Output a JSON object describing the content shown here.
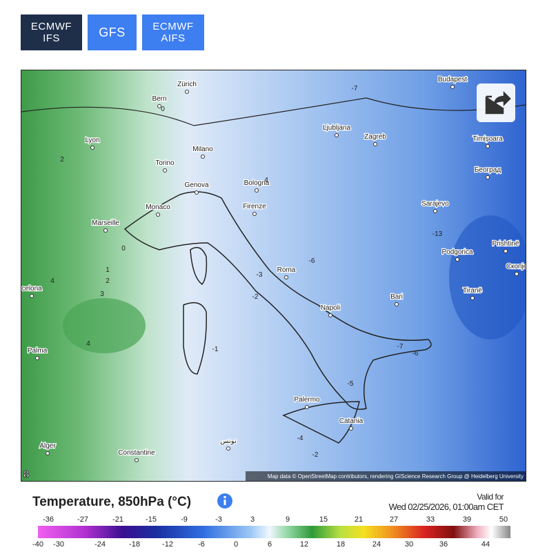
{
  "tabs": [
    {
      "label": "ECMWF IFS"
    },
    {
      "label": "GFS"
    },
    {
      "label": "ECMWF AIFS"
    }
  ],
  "map": {
    "cities": [
      "Budapest",
      "Zürich",
      "Bern",
      "Lyon",
      "Ljubljana",
      "Zagreb",
      "Timișoara",
      "Milano",
      "Torino",
      "Београд",
      "Genova",
      "Bologna",
      "Monaco",
      "Firenze",
      "Sarajevo",
      "Marseille",
      "Podgorica",
      "Prishtinë",
      "Скопје",
      "Roma",
      "Tiranë",
      "celona",
      "Bari",
      "Napoli",
      "Palma",
      "Palermo",
      "Catania",
      "Alger",
      "Constantine",
      "تونس"
    ],
    "contour_labels": [
      "-7",
      "2",
      "4",
      "0",
      "-6",
      "1",
      "2",
      "4",
      "-3",
      "3",
      "-2",
      "-13",
      "4",
      "-1",
      "-7",
      "-6",
      "-5",
      "-4",
      "-2",
      "0"
    ],
    "logo": "8",
    "attribution": "Map data © OpenStreetMap contributors, rendering GIScience Research Group @ Heidelberg University"
  },
  "legend": {
    "title": "Temperature, 850hPa (°C)",
    "valid_label": "Valid for",
    "valid_time": "Wed 02/25/2026, 01:00am CET",
    "top_ticks": [
      -36,
      -27,
      -21,
      -15,
      -9,
      -3,
      3,
      9,
      15,
      21,
      27,
      33,
      39,
      50
    ],
    "bottom_ticks": [
      -40,
      -30,
      -24,
      -18,
      -12,
      -6,
      0,
      6,
      12,
      18,
      24,
      30,
      36,
      44
    ]
  }
}
